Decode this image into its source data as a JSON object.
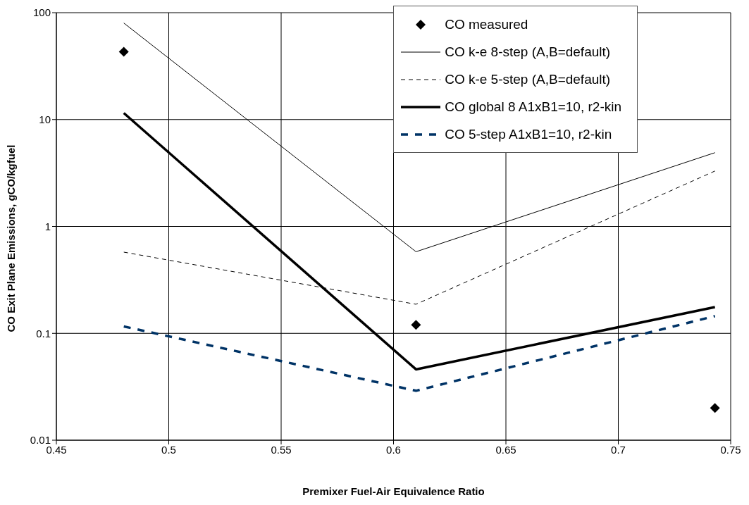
{
  "chart_data": {
    "type": "line",
    "xlabel": "Premixer Fuel-Air Equivalence Ratio",
    "ylabel": "CO Exit Plane Emissions, gCO/kgfuel",
    "x": [
      0.48,
      0.61,
      0.743
    ],
    "xlim": [
      0.45,
      0.75
    ],
    "xticks": [
      0.45,
      0.5,
      0.55,
      0.6,
      0.65,
      0.7,
      0.75
    ],
    "ylim": [
      0.01,
      100
    ],
    "yticks": [
      0.01,
      0.1,
      1,
      10,
      100
    ],
    "log": "y",
    "grid": true,
    "legend": "top right",
    "series": [
      {
        "name": "CO measured",
        "type": "scatter",
        "marker": "diamond",
        "color": "#000000",
        "values": [
          43,
          0.12,
          0.02
        ]
      },
      {
        "name": "CO k-e 8-step (A,B=default)",
        "line_style": "solid",
        "color": "#000000",
        "values": [
          80,
          0.58,
          4.9
        ]
      },
      {
        "name": "CO k-e 5-step (A,B=default)",
        "line_style": "dashed",
        "color": "#000000",
        "values": [
          0.575,
          0.187,
          3.3
        ]
      },
      {
        "name": "CO global 8 A1xB1=10, r2-kin",
        "line_style": "solid",
        "color": "#000000",
        "values": [
          11.5,
          0.046,
          0.176
        ]
      },
      {
        "name": "CO 5-step A1xB1=10, r2-kin",
        "line_style": "dashed",
        "color": "#003366",
        "values": [
          0.116,
          0.029,
          0.145
        ]
      }
    ]
  }
}
